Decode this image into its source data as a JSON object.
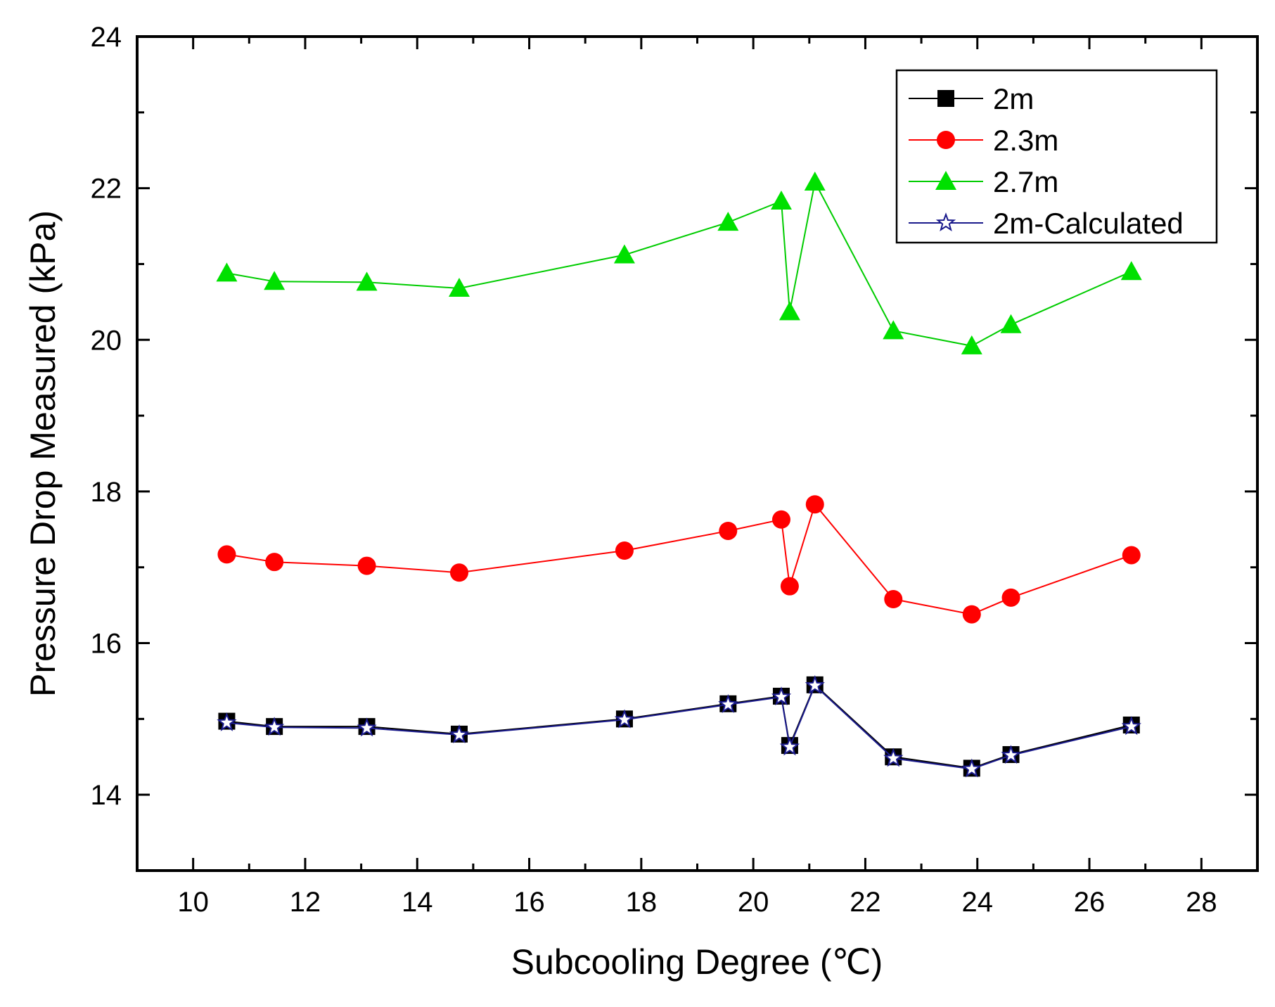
{
  "chart_data": {
    "type": "line",
    "title": "",
    "xlabel": "Subcooling Degree (℃)",
    "ylabel": "Pressure Drop Measured (kPa)",
    "xlim": [
      9,
      29
    ],
    "ylim": [
      13,
      24
    ],
    "xticks": [
      10,
      12,
      14,
      16,
      18,
      20,
      22,
      24,
      26,
      28
    ],
    "yticks": [
      14,
      16,
      18,
      20,
      22,
      24
    ],
    "grid": false,
    "legend_position": "top-right",
    "x": [
      10.6,
      11.45,
      13.1,
      14.75,
      17.7,
      19.55,
      20.5,
      20.65,
      21.1,
      22.5,
      23.9,
      24.6,
      26.75
    ],
    "series": [
      {
        "name": "2m",
        "marker": "square",
        "color": "#000000",
        "line_color": "#000000",
        "values": [
          14.97,
          14.9,
          14.9,
          14.8,
          15.0,
          15.2,
          15.3,
          14.65,
          15.45,
          14.5,
          14.35,
          14.53,
          14.92
        ]
      },
      {
        "name": "2.3m",
        "marker": "circle",
        "color": "#ff0000",
        "line_color": "#ff0000",
        "values": [
          17.17,
          17.07,
          17.02,
          16.93,
          17.22,
          17.48,
          17.63,
          16.75,
          17.83,
          16.58,
          16.38,
          16.6,
          17.16
        ]
      },
      {
        "name": "2.7m",
        "marker": "triangle",
        "color": "#00e000",
        "line_color": "#00cc00",
        "values": [
          20.88,
          20.77,
          20.76,
          20.68,
          21.12,
          21.55,
          21.83,
          20.37,
          22.08,
          20.12,
          19.92,
          20.2,
          20.9
        ]
      },
      {
        "name": "2m-Calculated",
        "marker": "star",
        "color": "#1a1a8c",
        "line_color": "#1a1a8c",
        "values": [
          14.95,
          14.89,
          14.88,
          14.79,
          14.99,
          15.19,
          15.29,
          14.63,
          15.44,
          14.48,
          14.34,
          14.52,
          14.9
        ]
      }
    ]
  }
}
